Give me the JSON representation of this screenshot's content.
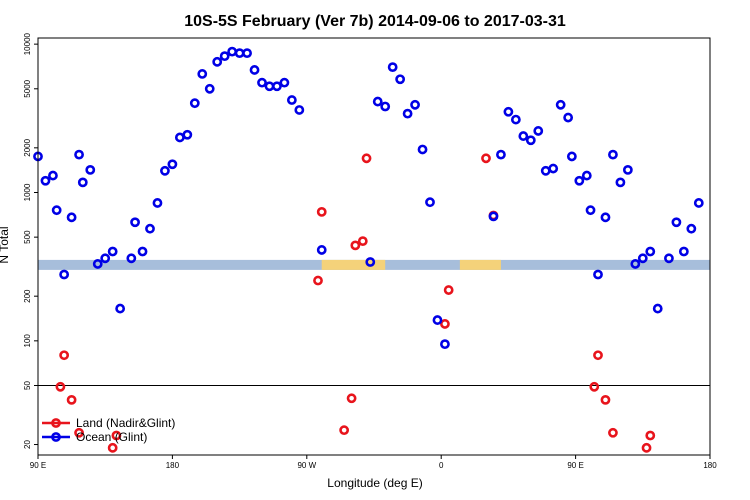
{
  "chart_data": {
    "type": "scatter",
    "title": "10S-5S February (Ver 7b)   2014-09-06 to 2017-03-31",
    "xlabel": "Longitude (deg E)",
    "ylabel": "N Total",
    "x_scale": "longitude, 90E to 180 (two cycles)",
    "y_scale": "log",
    "xlim": [
      90,
      450
    ],
    "ylim": [
      17,
      11000
    ],
    "x_ticks": [
      {
        "value": 90,
        "label": "90 E"
      },
      {
        "value": 162,
        "label": "180"
      },
      {
        "value": 234,
        "label": "90 W"
      },
      {
        "value": 306,
        "label": "0"
      },
      {
        "value": 378,
        "label": "90 E"
      },
      {
        "value": 450,
        "label": "180"
      }
    ],
    "y_ticks": [
      {
        "value": 20,
        "label": "20"
      },
      {
        "value": 50,
        "label": "50"
      },
      {
        "value": 100,
        "label": "100"
      },
      {
        "value": 200,
        "label": "200"
      },
      {
        "value": 500,
        "label": "500"
      },
      {
        "value": 1000,
        "label": "1000"
      },
      {
        "value": 2000,
        "label": "2000"
      },
      {
        "value": 5000,
        "label": "5000"
      },
      {
        "value": 10000,
        "label": "10000"
      }
    ],
    "reference_line": {
      "y": 50,
      "color": "#000000"
    },
    "band": {
      "y": 325,
      "ocean_color": "#a7bedb",
      "land_color": "#f4d27a",
      "land_ranges": [
        [
          242,
          276
        ],
        [
          316,
          338
        ]
      ]
    },
    "legend": {
      "placement": "bottom-left"
    },
    "series": [
      {
        "name": "Land (Nadir&Glint)",
        "color": "#e8141c",
        "points": [
          [
            102,
            49
          ],
          [
            104,
            80
          ],
          [
            108,
            40
          ],
          [
            112,
            24
          ],
          [
            130,
            19
          ],
          [
            132,
            23
          ],
          [
            240,
            255
          ],
          [
            242,
            740
          ],
          [
            254,
            25
          ],
          [
            258,
            41
          ],
          [
            260,
            440
          ],
          [
            264,
            470
          ],
          [
            266,
            1700
          ],
          [
            308,
            130
          ],
          [
            310,
            220
          ],
          [
            330,
            1700
          ],
          [
            334,
            700
          ],
          [
            388,
            49
          ],
          [
            390,
            80
          ],
          [
            394,
            40
          ],
          [
            398,
            24
          ],
          [
            416,
            19
          ],
          [
            418,
            23
          ]
        ]
      },
      {
        "name": "Ocean (Glint)",
        "color": "#0000e6",
        "points": [
          [
            90,
            1750
          ],
          [
            94,
            1200
          ],
          [
            98,
            1300
          ],
          [
            100,
            760
          ],
          [
            104,
            280
          ],
          [
            108,
            680
          ],
          [
            112,
            1800
          ],
          [
            114,
            1170
          ],
          [
            118,
            1420
          ],
          [
            122,
            330
          ],
          [
            126,
            360
          ],
          [
            130,
            400
          ],
          [
            134,
            165
          ],
          [
            140,
            360
          ],
          [
            142,
            630
          ],
          [
            146,
            400
          ],
          [
            150,
            570
          ],
          [
            154,
            850
          ],
          [
            158,
            1400
          ],
          [
            162,
            1550
          ],
          [
            166,
            2350
          ],
          [
            170,
            2450
          ],
          [
            174,
            4000
          ],
          [
            178,
            6300
          ],
          [
            182,
            5000
          ],
          [
            186,
            7600
          ],
          [
            190,
            8300
          ],
          [
            194,
            8900
          ],
          [
            198,
            8700
          ],
          [
            202,
            8700
          ],
          [
            206,
            6700
          ],
          [
            210,
            5500
          ],
          [
            214,
            5200
          ],
          [
            218,
            5200
          ],
          [
            222,
            5500
          ],
          [
            226,
            4200
          ],
          [
            230,
            3600
          ],
          [
            242,
            410
          ],
          [
            268,
            340
          ],
          [
            272,
            4100
          ],
          [
            276,
            3800
          ],
          [
            280,
            7000
          ],
          [
            284,
            5800
          ],
          [
            288,
            3400
          ],
          [
            292,
            3900
          ],
          [
            296,
            1950
          ],
          [
            300,
            860
          ],
          [
            304,
            138
          ],
          [
            308,
            95
          ],
          [
            334,
            690
          ],
          [
            338,
            1800
          ],
          [
            342,
            3500
          ],
          [
            346,
            3100
          ],
          [
            350,
            2400
          ],
          [
            354,
            2250
          ],
          [
            358,
            2600
          ],
          [
            362,
            1400
          ],
          [
            366,
            1450
          ],
          [
            370,
            3900
          ],
          [
            374,
            3200
          ],
          [
            376,
            1750
          ],
          [
            380,
            1200
          ],
          [
            384,
            1300
          ],
          [
            386,
            760
          ],
          [
            390,
            280
          ],
          [
            394,
            680
          ],
          [
            398,
            1800
          ],
          [
            402,
            1170
          ],
          [
            406,
            1420
          ],
          [
            410,
            330
          ],
          [
            414,
            360
          ],
          [
            418,
            400
          ],
          [
            422,
            165
          ],
          [
            428,
            360
          ],
          [
            432,
            630
          ],
          [
            436,
            400
          ],
          [
            440,
            570
          ],
          [
            444,
            850
          ]
        ]
      }
    ]
  }
}
